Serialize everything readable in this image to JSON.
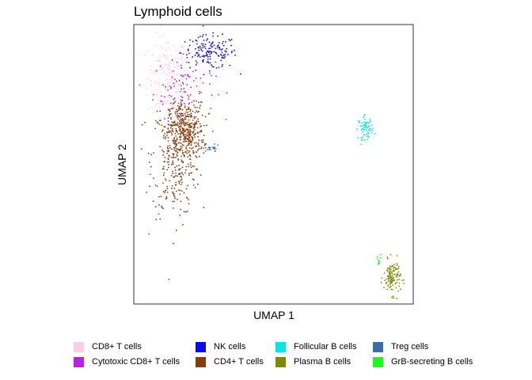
{
  "chart_data": {
    "type": "scatter",
    "title": "Lymphoid cells",
    "xlabel": "UMAP 1",
    "ylabel": "UMAP 2",
    "xlim": [
      0,
      100
    ],
    "ylim": [
      0,
      100
    ],
    "grid": false,
    "legend_position": "bottom",
    "series": [
      {
        "name": "CD8+ T cells",
        "color": "#ffcce6",
        "n": 180,
        "clusters": [
          {
            "cx": 12,
            "cy": 81,
            "sx": 3.5,
            "sy": 7.5
          }
        ]
      },
      {
        "name": "Cytotoxic CD8+ T cells",
        "color": "#c41af0",
        "n": 90,
        "clusters": [
          {
            "cx": 18,
            "cy": 77,
            "sx": 5.5,
            "sy": 5.5
          }
        ]
      },
      {
        "name": "NK cells",
        "color": "#0a0af0",
        "n": 160,
        "clusters": [
          {
            "cx": 27,
            "cy": 90,
            "sx": 5,
            "sy": 3
          }
        ]
      },
      {
        "name": "CD4+ T cells",
        "color": "#8b3a08",
        "n": 650,
        "clusters": [
          {
            "cx": 15,
            "cy": 53,
            "sx": 4.2,
            "sy": 11
          },
          {
            "cx": 19,
            "cy": 62,
            "sx": 3,
            "sy": 5
          }
        ]
      },
      {
        "name": "Follicular B cells",
        "color": "#0ce3e3",
        "n": 70,
        "clusters": [
          {
            "cx": 83,
            "cy": 63,
            "sx": 1.3,
            "sy": 2
          }
        ]
      },
      {
        "name": "Plasma B cells",
        "color": "#7f8a00",
        "n": 130,
        "clusters": [
          {
            "cx": 92.5,
            "cy": 9.5,
            "sx": 1.5,
            "sy": 3
          }
        ]
      },
      {
        "name": "Treg cells",
        "color": "#3a6ea5",
        "n": 22,
        "clusters": [
          {
            "cx": 27.5,
            "cy": 55.5,
            "sx": 1.6,
            "sy": 0.6
          }
        ]
      },
      {
        "name": "GrB-secreting B cells",
        "color": "#14ff14",
        "n": 10,
        "clusters": [
          {
            "cx": 87.5,
            "cy": 15,
            "sx": 0.5,
            "sy": 1.5
          }
        ]
      }
    ]
  },
  "legend_rows": [
    [
      {
        "label": "CD8+ T cells",
        "color": "#ffcce6"
      },
      {
        "label": "NK cells",
        "color": "#0a0af0"
      },
      {
        "label": "Follicular B cells",
        "color": "#0ce3e3"
      },
      {
        "label": "Treg cells",
        "color": "#3a6ea5"
      }
    ],
    [
      {
        "label": "Cytotoxic CD8+ T cells",
        "color": "#c41af0"
      },
      {
        "label": "CD4+ T cells",
        "color": "#8b3a08"
      },
      {
        "label": "Plasma B cells",
        "color": "#7f8a00"
      },
      {
        "label": "GrB-secreting B cells",
        "color": "#14ff14"
      }
    ]
  ]
}
